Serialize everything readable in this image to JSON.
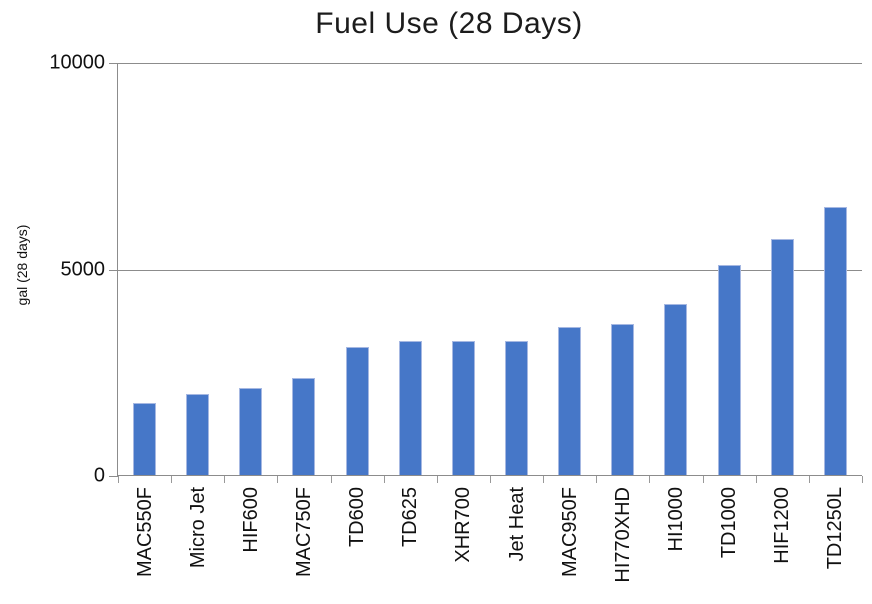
{
  "title": "Fuel Use (28 Days)",
  "chart_data": {
    "type": "bar",
    "title": "Fuel Use (28 Days)",
    "xlabel": "",
    "ylabel": "gal (28 days)",
    "categories": [
      "MAC550F",
      "Micro Jet",
      "HIF600",
      "MAC750F",
      "TD600",
      "TD625",
      "XHR700",
      "Jet Heat",
      "MAC950F",
      "HI770XHD",
      "HI1000",
      "TD1000",
      "HIF1200",
      "TD1250L"
    ],
    "values": [
      1760,
      1980,
      2120,
      2370,
      3120,
      3260,
      3270,
      3260,
      3620,
      3690,
      4160,
      5100,
      5750,
      6520
    ],
    "ylim": [
      0,
      10000
    ],
    "yticks": [
      0,
      5000,
      10000
    ],
    "grid": true,
    "legend": "none",
    "bar_color": "#4677c8",
    "bar_edge_color": "#a6b8e2",
    "axis_color": "#8c8c8c",
    "text_color": "#111111"
  }
}
